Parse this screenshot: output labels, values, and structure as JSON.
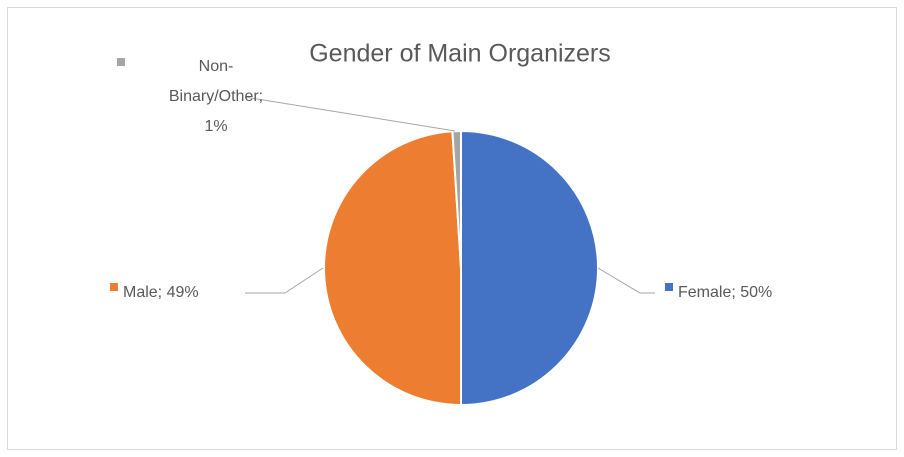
{
  "chart_data": {
    "type": "pie",
    "title": "Gender of Main Organizers",
    "values": [
      50,
      49,
      1
    ],
    "value_labels": [
      "Female; 50%",
      "Male; 49%",
      "Non-Binary/Other; 1%"
    ],
    "colors": [
      "#4472c4",
      "#ed7d31",
      "#a5a5a5"
    ]
  }
}
